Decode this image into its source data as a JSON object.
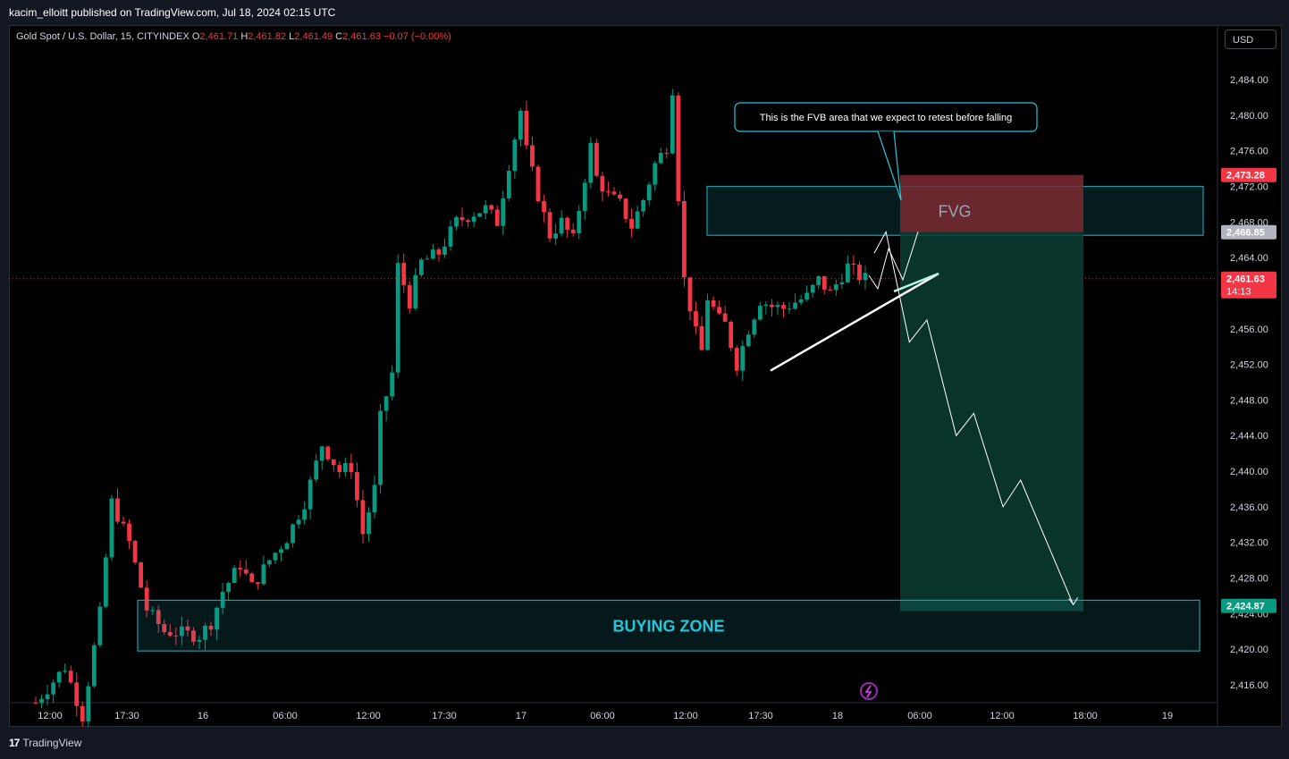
{
  "header": {
    "publisher": "kacim_elloitt published on TradingView.com, Jul 18, 2024 02:15 UTC"
  },
  "legend": {
    "symbol": "Gold Spot / U.S. Dollar, 15, CITYINDEX",
    "open_label": "O",
    "open": "2,461.71",
    "high_label": "H",
    "high": "2,461.82",
    "low_label": "L",
    "low": "2,461.49",
    "close_label": "C",
    "close": "2,461.63",
    "change": "−0.07 (−0.00%)"
  },
  "currency_button": "USD",
  "footer": {
    "logo_text": "TradingView",
    "logo_mark": "17"
  },
  "colors": {
    "up": "#089981",
    "down": "#f23645",
    "zone_teal": "#1e9aa8",
    "target_green": "#0b3d32",
    "stop_red": "#7a2a31",
    "background": "#000000"
  },
  "chart_data": {
    "type": "candlestick",
    "ylim": [
      2412,
      2487
    ],
    "y_ticks": [
      "2,416.00",
      "2,420.00",
      "2,424.00",
      "2,428.00",
      "2,432.00",
      "2,436.00",
      "2,440.00",
      "2,444.00",
      "2,448.00",
      "2,452.00",
      "2,456.00",
      "2,460.00",
      "2,464.00",
      "2,468.00",
      "2,472.00",
      "2,476.00",
      "2,480.00",
      "2,484.00"
    ],
    "x_ticks": [
      "12:00",
      "17:30",
      "16",
      "06:00",
      "12:00",
      "17:30",
      "17",
      "06:00",
      "12:00",
      "17:30",
      "18",
      "06:00",
      "12:00",
      "18:00",
      "19"
    ],
    "price_path": [
      [
        0,
        2414
      ],
      [
        5,
        2418
      ],
      [
        8,
        2412.5
      ],
      [
        11,
        2424
      ],
      [
        13,
        2436.5
      ],
      [
        16,
        2432
      ],
      [
        19,
        2424.5
      ],
      [
        22,
        2422
      ],
      [
        25,
        2421.8
      ],
      [
        28,
        2421.5
      ],
      [
        30,
        2423
      ],
      [
        32,
        2426.5
      ],
      [
        35,
        2429.5
      ],
      [
        37,
        2427
      ],
      [
        40,
        2430
      ],
      [
        43,
        2432.5
      ],
      [
        46,
        2436.5
      ],
      [
        49,
        2443
      ],
      [
        52,
        2440
      ],
      [
        54,
        2440.5
      ],
      [
        56,
        2433
      ],
      [
        58,
        2438
      ],
      [
        59,
        2446
      ],
      [
        61,
        2451
      ],
      [
        62,
        2463
      ],
      [
        64,
        2459
      ],
      [
        66,
        2463.5
      ],
      [
        69,
        2464.5
      ],
      [
        72,
        2468
      ],
      [
        75,
        2469
      ],
      [
        77,
        2469.5
      ],
      [
        79,
        2468
      ],
      [
        81,
        2474.5
      ],
      [
        83,
        2480.5
      ],
      [
        84,
        2476
      ],
      [
        86,
        2471
      ],
      [
        88,
        2466.5
      ],
      [
        90,
        2468
      ],
      [
        92,
        2466
      ],
      [
        94,
        2473
      ],
      [
        95,
        2476.5
      ],
      [
        96,
        2473
      ],
      [
        98,
        2471
      ],
      [
        100,
        2470
      ],
      [
        102,
        2467.5
      ],
      [
        104,
        2470.5
      ],
      [
        106,
        2474.5
      ],
      [
        108,
        2476.5
      ],
      [
        109,
        2483
      ],
      [
        110,
        2471
      ],
      [
        111,
        2461.5
      ],
      [
        113,
        2455.5
      ],
      [
        114,
        2453.5
      ],
      [
        115,
        2459.5
      ],
      [
        117,
        2457
      ],
      [
        118,
        2456.5
      ],
      [
        120,
        2452
      ],
      [
        122,
        2456
      ],
      [
        124,
        2459.2
      ],
      [
        126,
        2458.5
      ],
      [
        128,
        2458.3
      ],
      [
        130,
        2459
      ],
      [
        132,
        2459.6
      ],
      [
        134,
        2461.5
      ],
      [
        136,
        2460
      ],
      [
        138,
        2462
      ],
      [
        139,
        2463
      ],
      [
        141,
        2461.9
      ],
      [
        142,
        2461.63
      ]
    ],
    "last_price": "2,461.63",
    "countdown": "14:13",
    "price_labels": [
      {
        "value": 2473.28,
        "text": "2,473.28",
        "color": "#f23645"
      },
      {
        "value": 2466.85,
        "text": "2,466.85",
        "color": "#b2b5be"
      },
      {
        "value": 2424.87,
        "text": "2,424.87",
        "color": "#089981"
      }
    ],
    "fvg_zone": {
      "label": "FVG",
      "y_top": 2472,
      "y_bottom": 2466.5
    },
    "buying_zone": {
      "label": "BUYING ZONE",
      "y_top": 2425.5,
      "y_bottom": 2419.8
    },
    "position": {
      "entry": 2466.85,
      "stop": 2473.28,
      "target": 2424.87
    },
    "annotation": "This is the FVB area that we expect to retest before falling",
    "projection": [
      [
        0,
        2464.5
      ],
      [
        2,
        2466.9
      ],
      [
        6,
        2454.5
      ],
      [
        9,
        2457
      ],
      [
        14,
        2444
      ],
      [
        17,
        2446.5
      ],
      [
        22,
        2436
      ],
      [
        25,
        2439
      ],
      [
        34,
        2425
      ]
    ],
    "trendline": [
      [
        2452,
        2452.5
      ],
      [
        2458,
        2461.5
      ],
      [
        2464,
        2465
      ]
    ]
  }
}
